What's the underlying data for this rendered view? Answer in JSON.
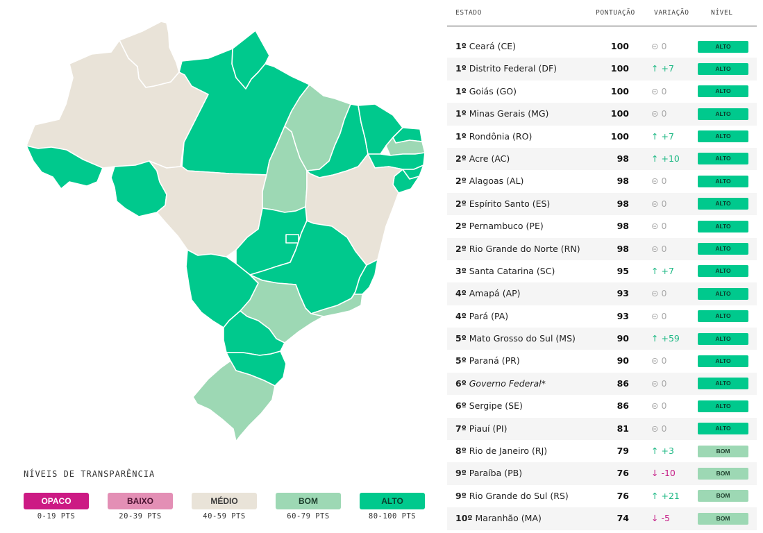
{
  "colors": {
    "opaco": "#cc1a84",
    "baixo": "#e38fb5",
    "medio": "#e9e3d8",
    "bom": "#9dd8b4",
    "alto": "#00c98d"
  },
  "map": {
    "regions": [
      {
        "name": "Roraima",
        "level": "medio"
      },
      {
        "name": "Amazonas",
        "level": "medio"
      },
      {
        "name": "Amapá",
        "level": "alto"
      },
      {
        "name": "Pará",
        "level": "alto"
      },
      {
        "name": "Acre",
        "level": "alto"
      },
      {
        "name": "Rondônia",
        "level": "alto"
      },
      {
        "name": "Mato Grosso",
        "level": "medio"
      },
      {
        "name": "Maranhão",
        "level": "bom"
      },
      {
        "name": "Tocantins",
        "level": "bom"
      },
      {
        "name": "Piauí",
        "level": "alto"
      },
      {
        "name": "Ceará",
        "level": "alto"
      },
      {
        "name": "Rio Grande do Norte",
        "level": "alto"
      },
      {
        "name": "Paraíba",
        "level": "bom"
      },
      {
        "name": "Pernambuco",
        "level": "alto"
      },
      {
        "name": "Alagoas",
        "level": "alto"
      },
      {
        "name": "Sergipe",
        "level": "alto"
      },
      {
        "name": "Bahia",
        "level": "medio"
      },
      {
        "name": "Goiás",
        "level": "alto"
      },
      {
        "name": "Distrito Federal",
        "level": "alto"
      },
      {
        "name": "Minas Gerais",
        "level": "alto"
      },
      {
        "name": "Espírito Santo",
        "level": "alto"
      },
      {
        "name": "Rio de Janeiro",
        "level": "bom"
      },
      {
        "name": "Mato Grosso do Sul",
        "level": "alto"
      },
      {
        "name": "São Paulo",
        "level": "bom"
      },
      {
        "name": "Paraná",
        "level": "alto"
      },
      {
        "name": "Santa Catarina",
        "level": "alto"
      },
      {
        "name": "Rio Grande do Sul",
        "level": "bom"
      }
    ]
  },
  "legend": {
    "title": "NÍVEIS DE TRANSPARÊNCIA",
    "items": [
      {
        "label": "OPACO",
        "range": "0-19 PTS",
        "color": "#cc1a84",
        "text_color": "#ffffff"
      },
      {
        "label": "BAIXO",
        "range": "20-39 PTS",
        "color": "#e38fb5",
        "text_color": "#4a1230"
      },
      {
        "label": "MÉDIO",
        "range": "40-59 PTS",
        "color": "#e9e3d8",
        "text_color": "#3a3a3a"
      },
      {
        "label": "BOM",
        "range": "60-79 PTS",
        "color": "#9dd8b4",
        "text_color": "#1d3e2c"
      },
      {
        "label": "ALTO",
        "range": "80-100 PTS",
        "color": "#00c98d",
        "text_color": "#0b3d2c"
      }
    ]
  },
  "table": {
    "headers": {
      "state": "ESTADO",
      "score": "PONTUAÇÃO",
      "variation": "VARIAÇÃO",
      "level": "NÍVEL"
    },
    "rows": [
      {
        "rank": "1º",
        "name": "Ceará (CE)",
        "score": "100",
        "var_icon": "⊝",
        "var": "0",
        "trend": "zero",
        "level": "ALTO"
      },
      {
        "rank": "1º",
        "name": "Distrito Federal (DF)",
        "score": "100",
        "var_icon": "↑",
        "var": "+7",
        "trend": "up",
        "level": "ALTO"
      },
      {
        "rank": "1º",
        "name": "Goiás (GO)",
        "score": "100",
        "var_icon": "⊝",
        "var": "0",
        "trend": "zero",
        "level": "ALTO"
      },
      {
        "rank": "1º",
        "name": "Minas Gerais (MG)",
        "score": "100",
        "var_icon": "⊝",
        "var": "0",
        "trend": "zero",
        "level": "ALTO"
      },
      {
        "rank": "1º",
        "name": "Rondônia (RO)",
        "score": "100",
        "var_icon": "↑",
        "var": "+7",
        "trend": "up",
        "level": "ALTO"
      },
      {
        "rank": "2º",
        "name": "Acre (AC)",
        "score": "98",
        "var_icon": "↑",
        "var": "+10",
        "trend": "up",
        "level": "ALTO"
      },
      {
        "rank": "2º",
        "name": "Alagoas (AL)",
        "score": "98",
        "var_icon": "⊝",
        "var": "0",
        "trend": "zero",
        "level": "ALTO"
      },
      {
        "rank": "2º",
        "name": "Espírito Santo (ES)",
        "score": "98",
        "var_icon": "⊝",
        "var": "0",
        "trend": "zero",
        "level": "ALTO"
      },
      {
        "rank": "2º",
        "name": "Pernambuco (PE)",
        "score": "98",
        "var_icon": "⊝",
        "var": "0",
        "trend": "zero",
        "level": "ALTO"
      },
      {
        "rank": "2º",
        "name": "Rio Grande do Norte (RN)",
        "score": "98",
        "var_icon": "⊝",
        "var": "0",
        "trend": "zero",
        "level": "ALTO"
      },
      {
        "rank": "3º",
        "name": "Santa Catarina (SC)",
        "score": "95",
        "var_icon": "↑",
        "var": "+7",
        "trend": "up",
        "level": "ALTO"
      },
      {
        "rank": "4º",
        "name": "Amapá (AP)",
        "score": "93",
        "var_icon": "⊝",
        "var": "0",
        "trend": "zero",
        "level": "ALTO"
      },
      {
        "rank": "4º",
        "name": "Pará (PA)",
        "score": "93",
        "var_icon": "⊝",
        "var": "0",
        "trend": "zero",
        "level": "ALTO"
      },
      {
        "rank": "5º",
        "name": "Mato Grosso do Sul (MS)",
        "score": "90",
        "var_icon": "↑",
        "var": "+59",
        "trend": "up",
        "level": "ALTO"
      },
      {
        "rank": "5º",
        "name": "Paraná (PR)",
        "score": "90",
        "var_icon": "⊝",
        "var": "0",
        "trend": "zero",
        "level": "ALTO"
      },
      {
        "rank": "6º",
        "name": "Governo Federal*",
        "score": "86",
        "var_icon": "⊝",
        "var": "0",
        "trend": "zero",
        "level": "ALTO",
        "italic": true
      },
      {
        "rank": "6º",
        "name": "Sergipe (SE)",
        "score": "86",
        "var_icon": "⊝",
        "var": "0",
        "trend": "zero",
        "level": "ALTO"
      },
      {
        "rank": "7º",
        "name": "Piauí (PI)",
        "score": "81",
        "var_icon": "⊝",
        "var": "0",
        "trend": "zero",
        "level": "ALTO"
      },
      {
        "rank": "8º",
        "name": "Rio de Janeiro (RJ)",
        "score": "79",
        "var_icon": "↑",
        "var": "+3",
        "trend": "up",
        "level": "BOM"
      },
      {
        "rank": "9º",
        "name": "Paraíba (PB)",
        "score": "76",
        "var_icon": "↓",
        "var": "-10",
        "trend": "down",
        "level": "BOM"
      },
      {
        "rank": "9º",
        "name": "Rio Grande do Sul (RS)",
        "score": "76",
        "var_icon": "↑",
        "var": "+21",
        "trend": "up",
        "level": "BOM"
      },
      {
        "rank": "10º",
        "name": "Maranhão (MA)",
        "score": "74",
        "var_icon": "↓",
        "var": "-5",
        "trend": "down",
        "level": "BOM"
      }
    ]
  }
}
